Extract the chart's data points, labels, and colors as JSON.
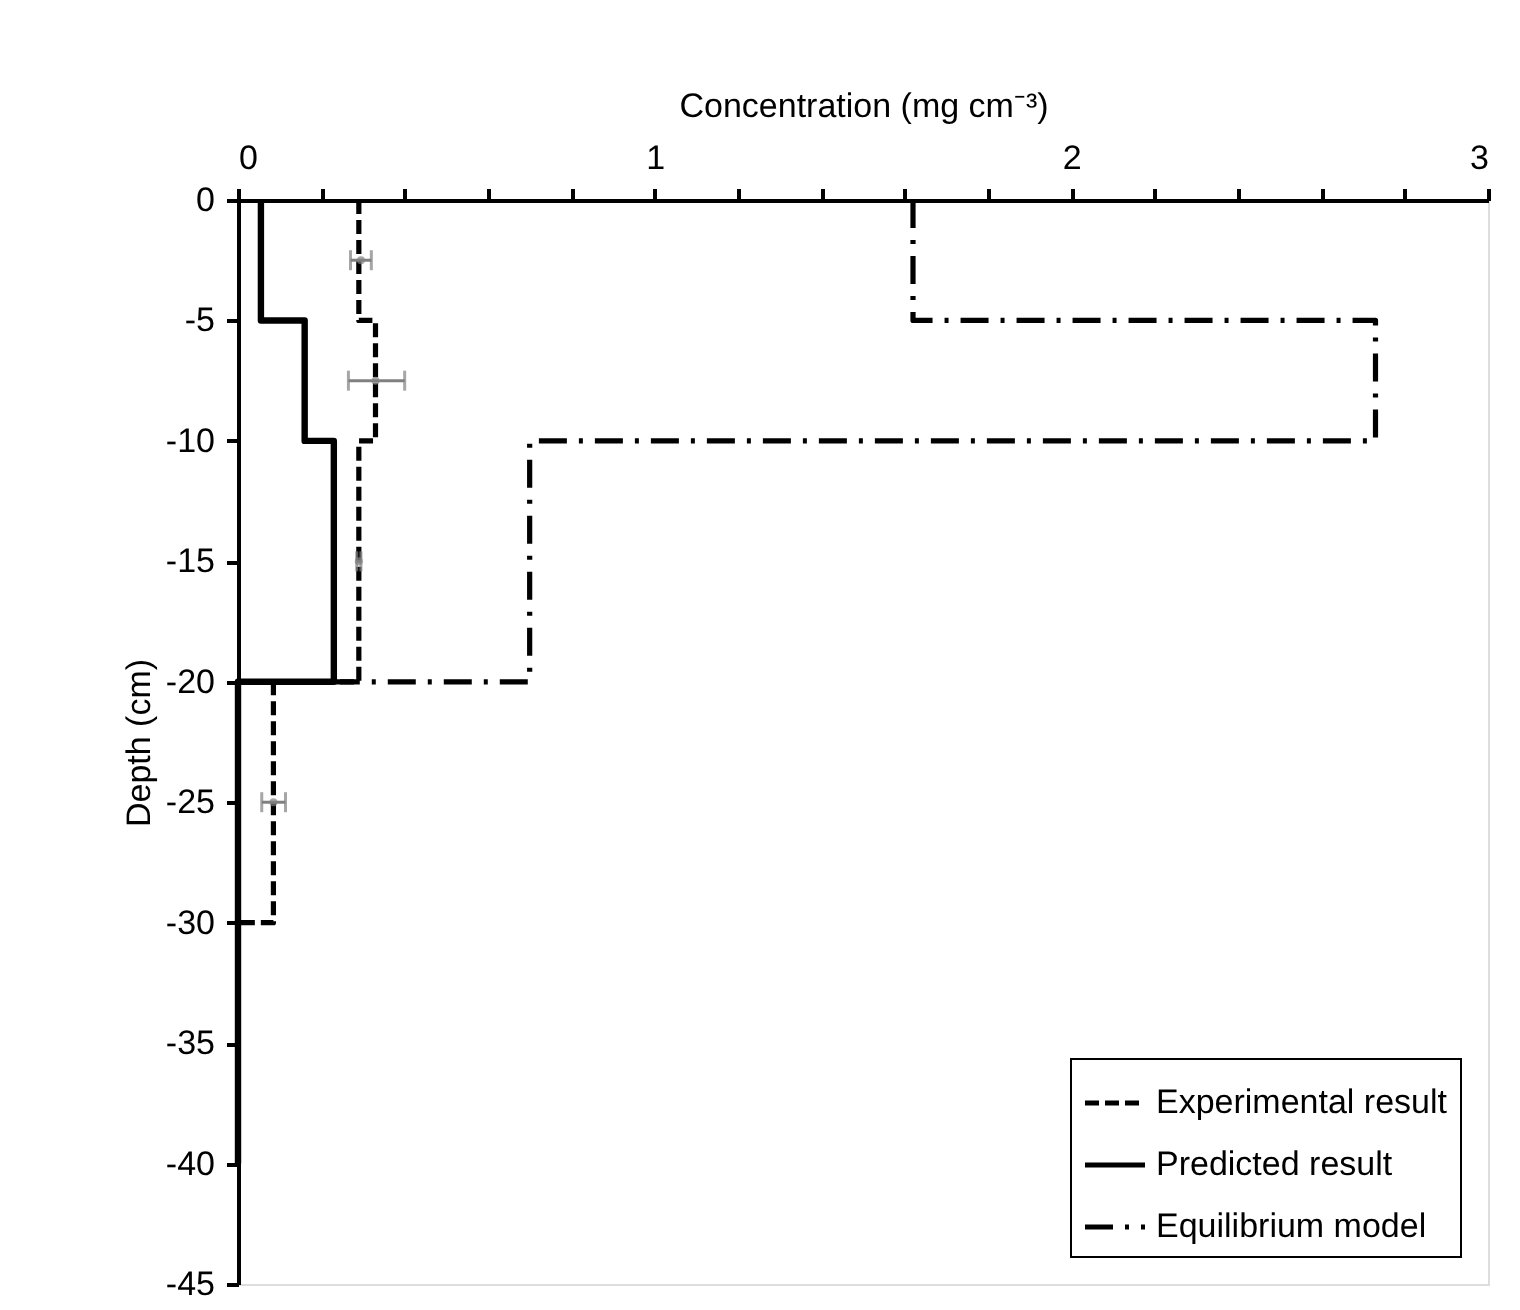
{
  "chart_data": {
    "type": "line",
    "xlabel": "Concentration (mg cm⁻³)",
    "ylabel": "Depth (cm)",
    "xlim": [
      0,
      3
    ],
    "ylim": [
      -45,
      0
    ],
    "xticks": [
      0,
      {
        "value": 0.2,
        "label": null
      },
      {
        "value": 0.4,
        "label": null
      },
      {
        "value": 0.6,
        "label": null
      },
      {
        "value": 0.8,
        "label": null
      },
      1,
      {
        "value": 1.2,
        "label": null
      },
      {
        "value": 1.4,
        "label": null
      },
      {
        "value": 1.6,
        "label": null
      },
      {
        "value": 1.8,
        "label": null
      },
      2,
      {
        "value": 2.2,
        "label": null
      },
      {
        "value": 2.4,
        "label": null
      },
      {
        "value": 2.6,
        "label": null
      },
      {
        "value": 2.8,
        "label": null
      },
      3
    ],
    "yticks": [
      0,
      -5,
      -10,
      -15,
      -20,
      -25,
      -30,
      -35,
      -40,
      -45
    ],
    "grid": false,
    "legend": "bottom right",
    "marker": "none",
    "series": [
      {
        "name": "Experimental result",
        "color": "#000000",
        "line_style": "dashed",
        "x": [
          0.29,
          0.29,
          0.33,
          0.33,
          0.29,
          0.29,
          0.085,
          0.085,
          0
        ],
        "values": [
          0,
          -5,
          -5,
          -10,
          -10,
          -20,
          -20,
          -30,
          -30
        ]
      },
      {
        "name": "Predicted result",
        "color": "#000000",
        "line_style": "solid",
        "x": [
          0.055,
          0.055,
          0.16,
          0.16,
          0.23,
          0.23,
          0,
          0
        ],
        "values": [
          0,
          -5,
          -5,
          -10,
          -10,
          -20,
          -20,
          -40
        ]
      },
      {
        "name": "Equilibrium model",
        "color": "#000000",
        "line_style": "dashdot",
        "x": [
          1.62,
          1.62,
          2.73,
          2.73,
          0.7,
          0.7,
          0
        ],
        "values": [
          0,
          -5,
          -5,
          -10,
          -10,
          -20,
          -20
        ]
      },
      {
        "type": "scatter",
        "color": "#808080",
        "marker": "circle",
        "x": [
          0.295,
          0.33,
          0.29,
          0.085
        ],
        "values": [
          -2.5,
          -7.5,
          -15,
          -25
        ],
        "xerrors": [
          [
            0.27,
            0.32
          ],
          [
            0.265,
            0.4
          ],
          [
            0.285,
            0.295
          ],
          [
            0.057,
            0.114
          ]
        ]
      }
    ]
  }
}
